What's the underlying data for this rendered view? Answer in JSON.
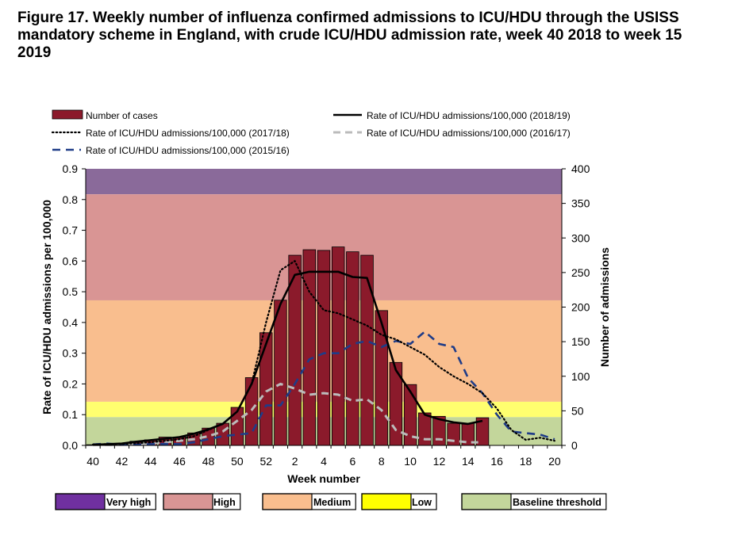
{
  "title": "Figure 17. Weekly number of influenza confirmed admissions to ICU/HDU through the USISS mandatory scheme in England, with crude ICU/HDU admission rate, week 40 2018 to week 15 2019",
  "chart_data": {
    "type": "bar",
    "xlabel": "Week number",
    "ylabel_left": "Rate of ICU/HDU admissions per 100,000",
    "ylabel_right": "Number of admissions",
    "categories": [
      "40",
      "41",
      "42",
      "43",
      "44",
      "45",
      "46",
      "47",
      "48",
      "49",
      "50",
      "51",
      "52",
      "1",
      "2",
      "3",
      "4",
      "5",
      "6",
      "7",
      "8",
      "9",
      "10",
      "11",
      "12",
      "13",
      "14",
      "15",
      "16",
      "17",
      "18",
      "19",
      "20"
    ],
    "x_tick_labels": [
      "40",
      "42",
      "44",
      "46",
      "48",
      "50",
      "52",
      "2",
      "4",
      "6",
      "8",
      "10",
      "12",
      "14",
      "16",
      "18",
      "20"
    ],
    "ylim_left": [
      0,
      0.9
    ],
    "yticks_left": [
      "0.0",
      "0.1",
      "0.2",
      "0.3",
      "0.4",
      "0.5",
      "0.6",
      "0.7",
      "0.8",
      "0.9"
    ],
    "ylim_right": [
      0,
      400
    ],
    "yticks_right": [
      "0",
      "50",
      "100",
      "150",
      "200",
      "250",
      "300",
      "350",
      "400"
    ],
    "bar_color": "#8B1A2B",
    "bars": {
      "name": "Number of cases",
      "values": [
        1,
        2,
        3,
        6,
        8,
        12,
        12,
        18,
        25,
        32,
        55,
        98,
        163,
        210,
        275,
        283,
        282,
        287,
        280,
        275,
        195,
        120,
        88,
        47,
        42,
        32,
        32,
        40,
        null,
        null,
        null,
        null,
        null
      ]
    },
    "lines": [
      {
        "name": "Rate of ICU/HDU admissions/100,000 (2018/19)",
        "style": "solid",
        "color": "#000000",
        "values": [
          0.002,
          0.004,
          0.006,
          0.012,
          0.017,
          0.022,
          0.027,
          0.038,
          0.052,
          0.07,
          0.11,
          0.2,
          0.33,
          0.46,
          0.555,
          0.565,
          0.565,
          0.565,
          0.548,
          0.545,
          0.4,
          0.245,
          0.175,
          0.1,
          0.085,
          0.075,
          0.07,
          0.08,
          null,
          null,
          null,
          null,
          null
        ]
      },
      {
        "name": "Rate of ICU/HDU admissions/100,000 (2017/18)",
        "style": "dotted",
        "color": "#000000",
        "values": [
          0.003,
          0.004,
          0.005,
          0.007,
          0.01,
          0.015,
          0.02,
          0.03,
          0.05,
          0.07,
          0.11,
          0.2,
          0.4,
          0.57,
          0.6,
          0.5,
          0.44,
          0.43,
          0.41,
          0.39,
          0.36,
          0.345,
          0.32,
          0.295,
          0.255,
          0.225,
          0.2,
          0.17,
          0.12,
          0.05,
          0.018,
          0.025,
          0.015
        ]
      },
      {
        "name": "Rate of ICU/HDU admissions/100,000 (2016/17)",
        "style": "dash-long",
        "color": "#bbbbbb",
        "values": [
          0.001,
          0.002,
          0.002,
          0.004,
          0.006,
          0.01,
          0.015,
          0.02,
          0.03,
          0.045,
          0.08,
          0.115,
          0.175,
          0.2,
          0.185,
          0.165,
          0.17,
          0.165,
          0.145,
          0.15,
          0.115,
          0.05,
          0.03,
          0.02,
          0.02,
          0.015,
          0.01,
          0.01,
          null,
          null,
          null,
          null,
          null
        ]
      },
      {
        "name": "Rate of ICU/HDU admissions/100,000 (2015/16)",
        "style": "dashed",
        "color": "#1F3C88",
        "values": [
          0.003,
          0.006,
          0.002,
          0.002,
          0.004,
          0.005,
          0.004,
          0.01,
          0.02,
          0.03,
          0.035,
          0.04,
          0.13,
          0.13,
          0.2,
          0.28,
          0.3,
          0.3,
          0.33,
          0.34,
          0.32,
          0.34,
          0.33,
          0.37,
          0.33,
          0.32,
          0.22,
          0.17,
          0.1,
          0.045,
          0.04,
          0.035,
          0.02
        ]
      }
    ],
    "bands": [
      {
        "label": "Very high",
        "from": 0.817,
        "to": 0.9,
        "color": "#8A6A9A"
      },
      {
        "label": "High",
        "from": 0.472,
        "to": 0.817,
        "color": "#D99594"
      },
      {
        "label": "Medium",
        "from": 0.142,
        "to": 0.472,
        "color": "#F9BE8E"
      },
      {
        "label": "Low",
        "from": 0.092,
        "to": 0.142,
        "color": "#FFFF6F"
      },
      {
        "label": "Baseline threshold",
        "from": 0,
        "to": 0.092,
        "color": "#C3D69B"
      }
    ],
    "legend_bottom": [
      {
        "label": "Very high",
        "color": "#7030A0"
      },
      {
        "label": "High",
        "color": "#D99594"
      },
      {
        "label": "Medium",
        "color": "#F9BE8E"
      },
      {
        "label": "Low",
        "color": "#FFFF00"
      },
      {
        "label": "Baseline threshold",
        "color": "#C3D69B"
      }
    ],
    "legend_placement": "top"
  }
}
